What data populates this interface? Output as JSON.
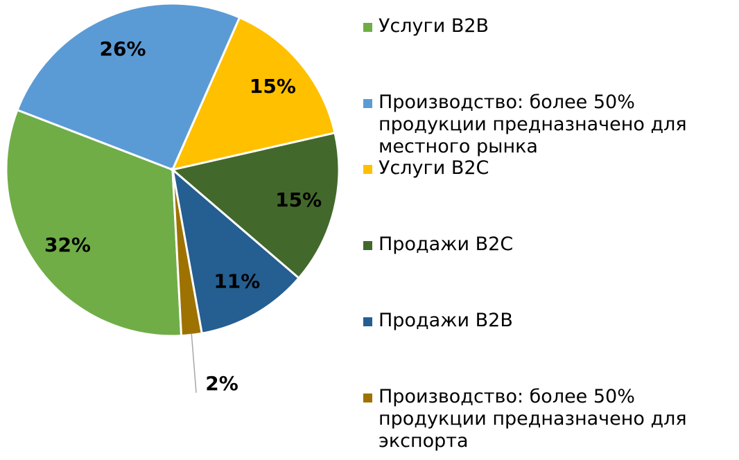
{
  "chart_data": {
    "type": "pie",
    "categories": [
      "Услуги B2B",
      "Производство: более 50% продукции предназначено для местного рынка",
      "Услуги B2C",
      "Продажи B2C",
      "Продажи B2B",
      "Производство: более 50% продукции предназначено для экспорта"
    ],
    "values": [
      32,
      26,
      15,
      15,
      11,
      2
    ],
    "value_labels": [
      "32%",
      "26%",
      "15%",
      "15%",
      "11%",
      "2%"
    ],
    "colors": [
      "#70ad47",
      "#5b9bd5",
      "#ffc000",
      "#43682b",
      "#255e91",
      "#9e7200"
    ],
    "legend": "right"
  }
}
